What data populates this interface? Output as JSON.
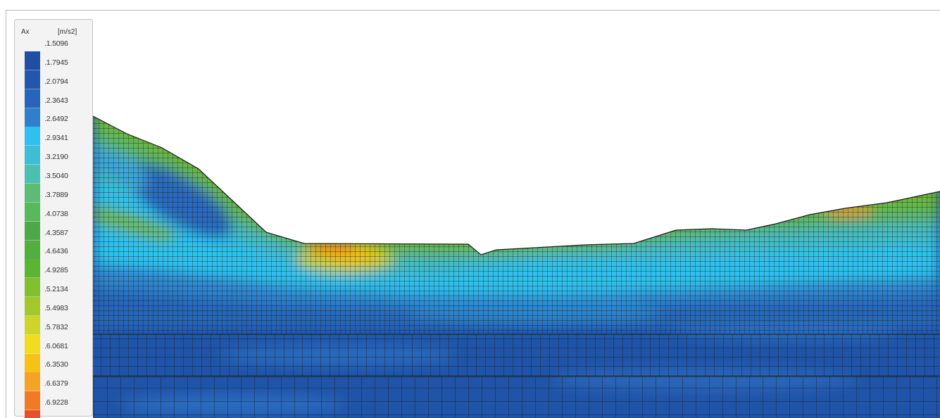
{
  "legend": {
    "quantity": "Ax",
    "unit": "[m/s2]",
    "values": [
      ".1.5096",
      ".1.7945",
      ".2.0794",
      ".2.3643",
      ".2.6492",
      ".2.9341",
      ".3.2190",
      ".3.5040",
      ".3.7889",
      ".4.0738",
      ".4.3587",
      ".4.6436",
      ".4.9285",
      ".5.2134",
      ".5.4983",
      ".5.7832",
      ".6.0681",
      ".6.3530",
      ".6.6379",
      ".6.9228"
    ],
    "colors": [
      "#1f4fa2",
      "#2258ab",
      "#2765b8",
      "#2e80cc",
      "#2ec0ef",
      "#3fbcd6",
      "#4cc0b0",
      "#5dbb74",
      "#58b85c",
      "#4ea848",
      "#52ae3e",
      "#5cb433",
      "#80bf2e",
      "#a4c82c",
      "#cdd42b",
      "#f2dd1c",
      "#f6c217",
      "#f4a425",
      "#f07a23",
      "#e84f2b"
    ]
  }
}
